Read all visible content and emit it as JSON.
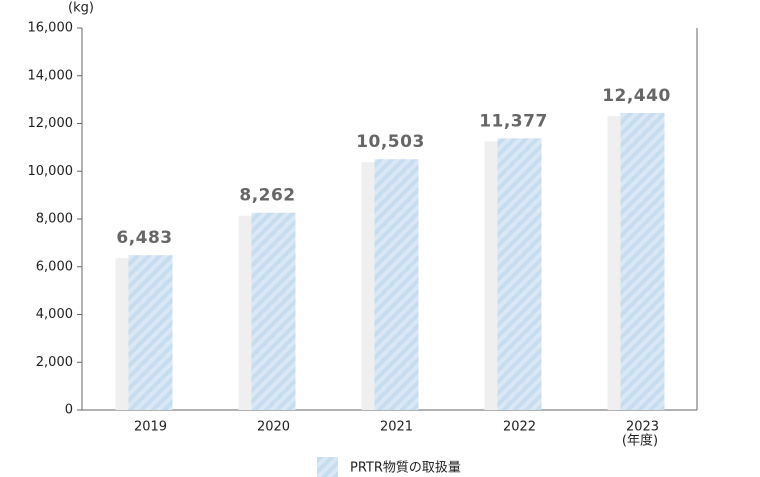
{
  "chart_data": {
    "type": "bar",
    "y_label": "(kg)",
    "x_label": "(年度)",
    "categories": [
      "2019",
      "2020",
      "2021",
      "2022",
      "2023"
    ],
    "series": [
      {
        "name": "PRTR物質の取扱量",
        "color": "#c6dcef",
        "values": [
          6483,
          8262,
          10503,
          11377,
          12440
        ],
        "value_labels": [
          "6,483",
          "8,262",
          "10,503",
          "11,377",
          "12,440"
        ]
      }
    ],
    "ylim": [
      0,
      16000
    ],
    "yticks": [
      0,
      {
        "value": 2000,
        "label": "2,000"
      },
      {
        "value": 4000,
        "label": "4,000"
      },
      {
        "value": 6000,
        "label": "6,000"
      },
      {
        "value": 8000,
        "label": "8,000"
      },
      {
        "value": 10000,
        "label": "10,000"
      },
      {
        "value": 12000,
        "label": "12,000"
      },
      {
        "value": 14000,
        "label": "14,000"
      },
      {
        "value": 16000,
        "label": "16,000"
      }
    ]
  }
}
